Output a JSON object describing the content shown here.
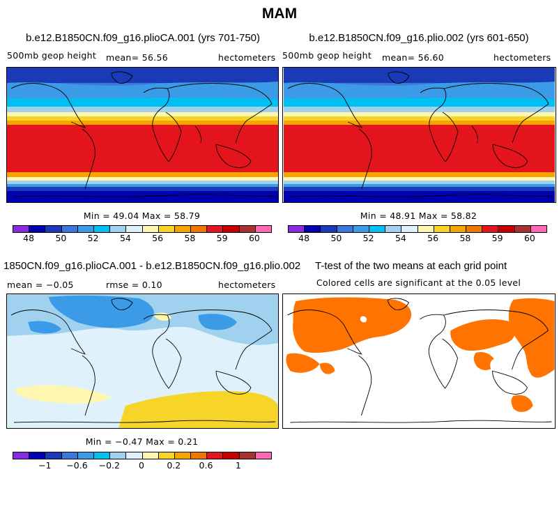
{
  "figure_title": "MAM",
  "colors": {
    "scale": [
      "#8a2be2",
      "#0000b0",
      "#1a3ab8",
      "#3c78dc",
      "#3c9be6",
      "#00bff3",
      "#a0d2f0",
      "#dff2fc",
      "#fff7b0",
      "#f7d528",
      "#f5a400",
      "#f07800",
      "#e4141c",
      "#c50000",
      "#a83232",
      "#ff69b4"
    ],
    "significance": "#ff7300"
  },
  "panels": [
    {
      "title": "b.e12.B1850CN.f09_g16.plioCA.001 (yrs 701-750)",
      "left_label": "500mb geop height",
      "center_label": "mean=   56.56",
      "right_label": "hectometers",
      "stats": "Min =   49.04  Max =   58.79",
      "ticks": [
        "48",
        "50",
        "52",
        "54",
        "56",
        "58",
        "59",
        "60"
      ]
    },
    {
      "title": "b.e12.B1850CN.f09_g16.plio.002 (yrs 601-650)",
      "left_label": "500mb geop height",
      "center_label": "mean=   56.60",
      "right_label": "hectometers",
      "stats": "Min =   48.91  Max =   58.82",
      "ticks": [
        "48",
        "50",
        "52",
        "54",
        "56",
        "58",
        "59",
        "60"
      ]
    },
    {
      "title": "1850CN.f09_g16.plioCA.001 - b.e12.B1850CN.f09_g16.plio.002",
      "left_label": "mean =  −0.05",
      "center_label": "rmse =    0.10",
      "right_label": "hectometers",
      "stats": "Min =  −0.47  Max =    0.21",
      "ticks": [
        "−1",
        "−0.6",
        "−0.2",
        "0",
        "0.2",
        "0.6",
        "1"
      ]
    },
    {
      "title": "T-test of the two means at each grid point",
      "subtitle": "Colored cells are significant at the 0.05 level"
    }
  ]
}
